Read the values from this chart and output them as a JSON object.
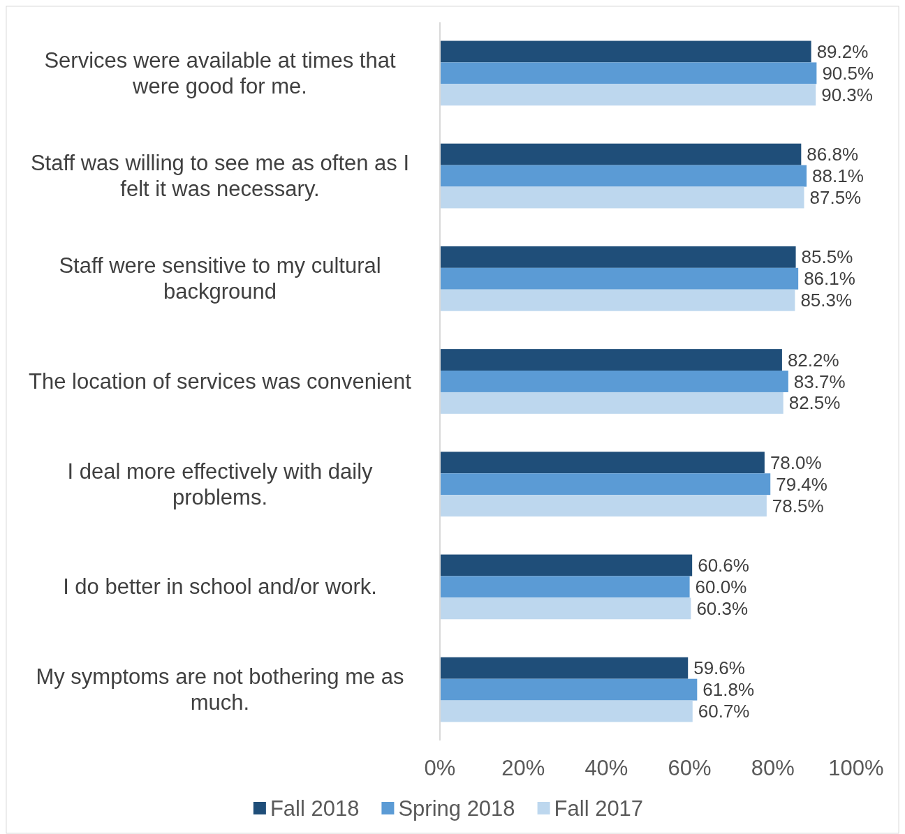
{
  "chart_data": {
    "type": "bar",
    "orientation": "horizontal",
    "categories": [
      "Services were available at times that were good for me.",
      "Staff was willing to see me as often as I felt it was necessary.",
      "Staff were sensitive to my cultural background",
      "The location of services was convenient",
      "I deal more effectively with daily problems.",
      "I do better in school and/or work.",
      "My symptoms are not bothering me as much."
    ],
    "series": [
      {
        "name": "Fall 2018",
        "color": "#1f4e79",
        "values": [
          89.2,
          86.8,
          85.5,
          82.2,
          78.0,
          60.6,
          59.6
        ],
        "value_labels": [
          "89.2%",
          "86.8%",
          "85.5%",
          "82.2%",
          "78.0%",
          "60.6%",
          "59.6%"
        ]
      },
      {
        "name": "Spring 2018",
        "color": "#5b9bd5",
        "values": [
          90.5,
          88.1,
          86.1,
          83.7,
          79.4,
          60.0,
          61.8
        ],
        "value_labels": [
          "90.5%",
          "88.1%",
          "86.1%",
          "83.7%",
          "79.4%",
          "60.0%",
          "61.8%"
        ]
      },
      {
        "name": "Fall 2017",
        "color": "#bdd7ee",
        "values": [
          90.3,
          87.5,
          85.3,
          82.5,
          78.5,
          60.3,
          60.7
        ],
        "value_labels": [
          "90.3%",
          "87.5%",
          "85.3%",
          "82.5%",
          "78.5%",
          "60.3%",
          "60.7%"
        ]
      }
    ],
    "xlim": [
      0,
      100
    ],
    "xticks": [
      {
        "value": 0,
        "label": "0%"
      },
      {
        "value": 20,
        "label": "20%"
      },
      {
        "value": 40,
        "label": "40%"
      },
      {
        "value": 60,
        "label": "60%"
      },
      {
        "value": 80,
        "label": "80%"
      },
      {
        "value": 100,
        "label": "100%"
      }
    ],
    "grid": false,
    "legend": "bottom"
  }
}
